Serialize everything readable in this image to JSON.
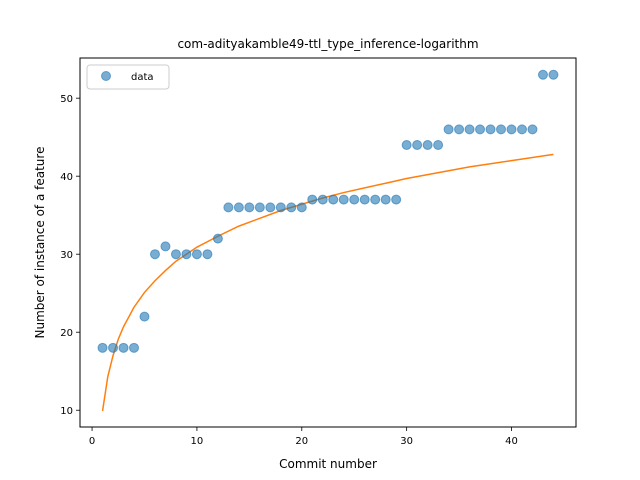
{
  "chart_data": {
    "type": "scatter",
    "title": "com-adityakamble49-ttl_type_inference-logarithm",
    "xlabel": "Commit number",
    "ylabel": "Number of instance of a feature",
    "xlim": [
      -1.15,
      46.15
    ],
    "ylim": [
      7.85,
      55.15
    ],
    "xticks": [
      0,
      10,
      20,
      30,
      40
    ],
    "yticks": [
      10,
      20,
      30,
      40,
      50
    ],
    "grid": false,
    "legend_position": "upper-left",
    "series": [
      {
        "name": "data",
        "kind": "scatter",
        "color": "#1f77b4",
        "x": [
          1,
          2,
          3,
          4,
          5,
          6,
          7,
          8,
          9,
          10,
          11,
          12,
          13,
          14,
          15,
          16,
          17,
          18,
          19,
          20,
          21,
          22,
          23,
          24,
          25,
          26,
          27,
          28,
          29,
          30,
          31,
          32,
          33,
          34,
          35,
          36,
          37,
          38,
          39,
          40,
          41,
          42,
          43,
          44
        ],
        "y": [
          18,
          18,
          18,
          18,
          22,
          30,
          31,
          30,
          30,
          30,
          30,
          32,
          36,
          36,
          36,
          36,
          36,
          36,
          36,
          36,
          37,
          37,
          37,
          37,
          37,
          37,
          37,
          37,
          37,
          44,
          44,
          44,
          44,
          46,
          46,
          46,
          46,
          46,
          46,
          46,
          46,
          46,
          53,
          53
        ]
      },
      {
        "kind": "line",
        "color": "#ff7f0e",
        "x": [
          1,
          1.5,
          2,
          2.5,
          3,
          4,
          5,
          6,
          7,
          8,
          10,
          12,
          14,
          16,
          18,
          20,
          22,
          24,
          26,
          28,
          30,
          32,
          34,
          36,
          38,
          40,
          42,
          44
        ],
        "y": [
          9.9,
          14.3,
          17.0,
          19.1,
          20.7,
          23.2,
          25.1,
          26.6,
          27.9,
          29.1,
          30.9,
          32.3,
          33.6,
          34.6,
          35.6,
          36.4,
          37.2,
          37.9,
          38.5,
          39.1,
          39.7,
          40.2,
          40.7,
          41.2,
          41.6,
          42.0,
          42.4,
          42.8
        ]
      }
    ]
  }
}
